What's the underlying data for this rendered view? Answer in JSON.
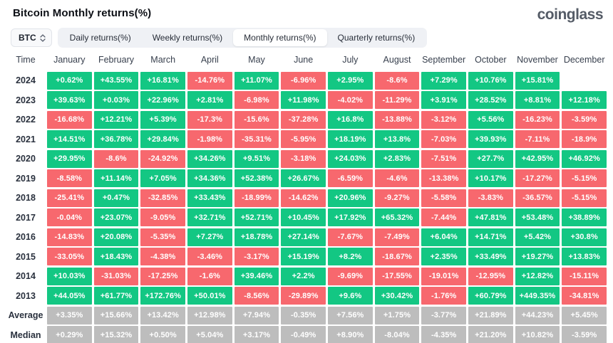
{
  "header": {
    "title": "Bitcoin Monthly returns(%)",
    "logo": "coinglass"
  },
  "controls": {
    "symbol_selector": {
      "value": "BTC",
      "icon": "updown-caret-icon"
    },
    "tabs": [
      {
        "label": "Daily returns(%)",
        "active": false
      },
      {
        "label": "Weekly returns(%)",
        "active": false
      },
      {
        "label": "Monthly returns(%)",
        "active": true
      },
      {
        "label": "Quarterly returns(%)",
        "active": false
      }
    ]
  },
  "chart_data": {
    "type": "heatmap",
    "title": "Bitcoin Monthly returns(%)",
    "legend_position": "none",
    "grid": false,
    "colors": {
      "positive": "#13c783",
      "negative": "#f7686e",
      "summary": "#bdbdbd",
      "cell_text": "#ffffff"
    },
    "columns": [
      "Time",
      "January",
      "February",
      "March",
      "April",
      "May",
      "June",
      "July",
      "August",
      "September",
      "October",
      "November",
      "December"
    ],
    "rows": [
      {
        "label": "2024",
        "summary": false,
        "values": [
          "+0.62%",
          "+43.55%",
          "+16.81%",
          "-14.76%",
          "+11.07%",
          "-6.96%",
          "+2.95%",
          "-8.6%",
          "+7.29%",
          "+10.76%",
          "+15.81%",
          ""
        ]
      },
      {
        "label": "2023",
        "summary": false,
        "values": [
          "+39.63%",
          "+0.03%",
          "+22.96%",
          "+2.81%",
          "-6.98%",
          "+11.98%",
          "-4.02%",
          "-11.29%",
          "+3.91%",
          "+28.52%",
          "+8.81%",
          "+12.18%"
        ]
      },
      {
        "label": "2022",
        "summary": false,
        "values": [
          "-16.68%",
          "+12.21%",
          "+5.39%",
          "-17.3%",
          "-15.6%",
          "-37.28%",
          "+16.8%",
          "-13.88%",
          "-3.12%",
          "+5.56%",
          "-16.23%",
          "-3.59%"
        ]
      },
      {
        "label": "2021",
        "summary": false,
        "values": [
          "+14.51%",
          "+36.78%",
          "+29.84%",
          "-1.98%",
          "-35.31%",
          "-5.95%",
          "+18.19%",
          "+13.8%",
          "-7.03%",
          "+39.93%",
          "-7.11%",
          "-18.9%"
        ]
      },
      {
        "label": "2020",
        "summary": false,
        "values": [
          "+29.95%",
          "-8.6%",
          "-24.92%",
          "+34.26%",
          "+9.51%",
          "-3.18%",
          "+24.03%",
          "+2.83%",
          "-7.51%",
          "+27.7%",
          "+42.95%",
          "+46.92%"
        ]
      },
      {
        "label": "2019",
        "summary": false,
        "values": [
          "-8.58%",
          "+11.14%",
          "+7.05%",
          "+34.36%",
          "+52.38%",
          "+26.67%",
          "-6.59%",
          "-4.6%",
          "-13.38%",
          "+10.17%",
          "-17.27%",
          "-5.15%"
        ]
      },
      {
        "label": "2018",
        "summary": false,
        "values": [
          "-25.41%",
          "+0.47%",
          "-32.85%",
          "+33.43%",
          "-18.99%",
          "-14.62%",
          "+20.96%",
          "-9.27%",
          "-5.58%",
          "-3.83%",
          "-36.57%",
          "-5.15%"
        ]
      },
      {
        "label": "2017",
        "summary": false,
        "values": [
          "-0.04%",
          "+23.07%",
          "-9.05%",
          "+32.71%",
          "+52.71%",
          "+10.45%",
          "+17.92%",
          "+65.32%",
          "-7.44%",
          "+47.81%",
          "+53.48%",
          "+38.89%"
        ]
      },
      {
        "label": "2016",
        "summary": false,
        "values": [
          "-14.83%",
          "+20.08%",
          "-5.35%",
          "+7.27%",
          "+18.78%",
          "+27.14%",
          "-7.67%",
          "-7.49%",
          "+6.04%",
          "+14.71%",
          "+5.42%",
          "+30.8%"
        ]
      },
      {
        "label": "2015",
        "summary": false,
        "values": [
          "-33.05%",
          "+18.43%",
          "-4.38%",
          "-3.46%",
          "-3.17%",
          "+15.19%",
          "+8.2%",
          "-18.67%",
          "+2.35%",
          "+33.49%",
          "+19.27%",
          "+13.83%"
        ]
      },
      {
        "label": "2014",
        "summary": false,
        "values": [
          "+10.03%",
          "-31.03%",
          "-17.25%",
          "-1.6%",
          "+39.46%",
          "+2.2%",
          "-9.69%",
          "-17.55%",
          "-19.01%",
          "-12.95%",
          "+12.82%",
          "-15.11%"
        ]
      },
      {
        "label": "2013",
        "summary": false,
        "values": [
          "+44.05%",
          "+61.77%",
          "+172.76%",
          "+50.01%",
          "-8.56%",
          "-29.89%",
          "+9.6%",
          "+30.42%",
          "-1.76%",
          "+60.79%",
          "+449.35%",
          "-34.81%"
        ]
      },
      {
        "label": "Average",
        "summary": true,
        "values": [
          "+3.35%",
          "+15.66%",
          "+13.42%",
          "+12.98%",
          "+7.94%",
          "-0.35%",
          "+7.56%",
          "+1.75%",
          "-3.77%",
          "+21.89%",
          "+44.23%",
          "+5.45%"
        ]
      },
      {
        "label": "Median",
        "summary": true,
        "values": [
          "+0.29%",
          "+15.32%",
          "+0.50%",
          "+5.04%",
          "+3.17%",
          "-0.49%",
          "+8.90%",
          "-8.04%",
          "-4.35%",
          "+21.20%",
          "+10.82%",
          "-3.59%"
        ]
      }
    ]
  }
}
